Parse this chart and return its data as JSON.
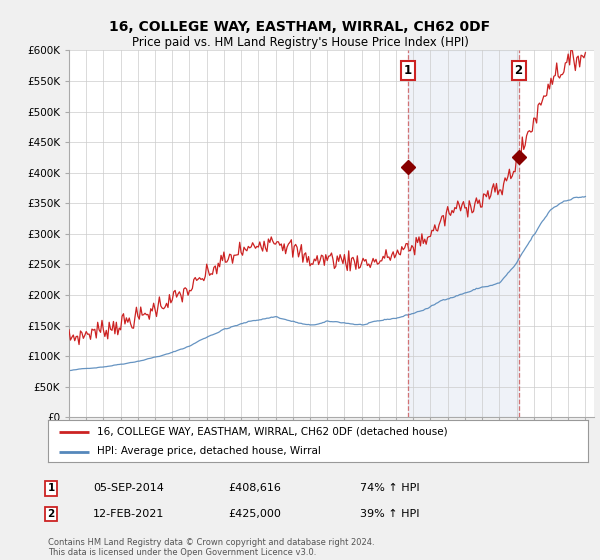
{
  "title": "16, COLLEGE WAY, EASTHAM, WIRRAL, CH62 0DF",
  "subtitle": "Price paid vs. HM Land Registry's House Price Index (HPI)",
  "legend_line1": "16, COLLEGE WAY, EASTHAM, WIRRAL, CH62 0DF (detached house)",
  "legend_line2": "HPI: Average price, detached house, Wirral",
  "annotation1_label": "1",
  "annotation1_date": "05-SEP-2014",
  "annotation1_price": "£408,616",
  "annotation1_hpi": "74% ↑ HPI",
  "annotation1_year": 2014.67,
  "annotation1_value": 408616,
  "annotation2_label": "2",
  "annotation2_date": "12-FEB-2021",
  "annotation2_price": "£425,000",
  "annotation2_hpi": "39% ↑ HPI",
  "annotation2_year": 2021.12,
  "annotation2_value": 425000,
  "footer": "Contains HM Land Registry data © Crown copyright and database right 2024.\nThis data is licensed under the Open Government Licence v3.0.",
  "hpi_color": "#5588bb",
  "price_color": "#cc2222",
  "shade_color": "#ddeeff",
  "ylim": [
    0,
    600000
  ],
  "yticks": [
    0,
    50000,
    100000,
    150000,
    200000,
    250000,
    300000,
    350000,
    400000,
    450000,
    500000,
    550000,
    600000
  ],
  "background_color": "#f0f0f0",
  "plot_bg_color": "#ffffff"
}
